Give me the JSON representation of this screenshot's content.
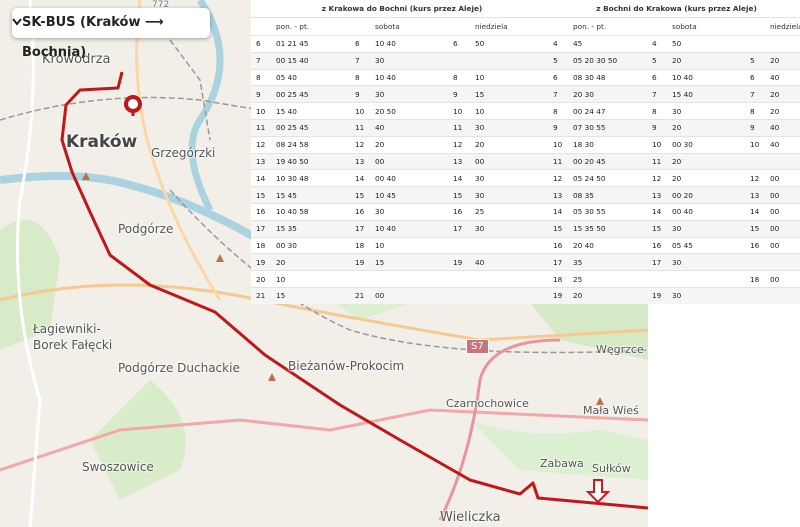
{
  "map": {
    "title": "SK-BUS (Kraków ⟶ Bochnia)",
    "labels": [
      "Krowodrza",
      "Kraków",
      "Grzegórzki",
      "Podgórze",
      "Łagiewniki-",
      "Borek Fałęcki",
      "Podgórze Duchackie",
      "Bieżanów-Prokocim",
      "Czarnochowice",
      "Węgrzce Wiel",
      "Mała Wieś",
      "Swoszowice",
      "Zabawa",
      "Sułków",
      "Wieliczka"
    ],
    "road_labels": [
      "S7",
      "772"
    ]
  },
  "timetable": {
    "directions": [
      "z Krakowa do Bochni (kurs przez Aleje)",
      "z Bochni do Krakowa (kurs przez Aleje)"
    ],
    "columns": [
      "pon. - pt.",
      "sobota",
      "niedziela",
      "pon. - pt.",
      "sobota",
      "niedziela"
    ],
    "rows": [
      [
        "6",
        "01 21 45",
        "6",
        "10 40",
        "6",
        "50",
        "4",
        "45",
        "4",
        "50",
        null,
        null
      ],
      [
        "7",
        "00 15 40",
        "7",
        "30",
        null,
        null,
        "5",
        "05 20 30 50",
        "5",
        "20",
        "5",
        "20"
      ],
      [
        "8",
        "05 40",
        "8",
        "10 40",
        "8",
        "10",
        "6",
        "08 30 48",
        "6",
        "10 40",
        "6",
        "40"
      ],
      [
        "9",
        "00 25 45",
        "9",
        "30",
        "9",
        "15",
        "7",
        "20 30",
        "7",
        "15 40",
        "7",
        "20"
      ],
      [
        "10",
        "15 40",
        "10",
        "20 50",
        "10",
        "10",
        "8",
        "00 24 47",
        "8",
        "30",
        "8",
        "20"
      ],
      [
        "11",
        "00 25 45",
        "11",
        "40",
        "11",
        "30",
        "9",
        "07 30 55",
        "9",
        "20",
        "9",
        "40"
      ],
      [
        "12",
        "08 24 58",
        "12",
        "20",
        "12",
        "20",
        "10",
        "18 30",
        "10",
        "00 30",
        "10",
        "40"
      ],
      [
        "13",
        "19 40 50",
        "13",
        "00",
        "13",
        "00",
        "11",
        "00 20 45",
        "11",
        "20",
        null,
        null
      ],
      [
        "14",
        "10 30 48",
        "14",
        "00 40",
        "14",
        "30",
        "12",
        "05 24 50",
        "12",
        "20",
        "12",
        "00"
      ],
      [
        "15",
        "15 45",
        "15",
        "10 45",
        "15",
        "30",
        "13",
        "08 35",
        "13",
        "00 20",
        "13",
        "00"
      ],
      [
        "16",
        "10 40 58",
        "16",
        "30",
        "16",
        "25",
        "14",
        "05 30 55",
        "14",
        "00 40",
        "14",
        "00"
      ],
      [
        "17",
        "15 35",
        "17",
        "10 40",
        "17",
        "30",
        "15",
        "15 35 50",
        "15",
        "30",
        "15",
        "00"
      ],
      [
        "18",
        "00 30",
        "18",
        "10",
        null,
        null,
        "16",
        "20 40",
        "16",
        "05 45",
        "16",
        "00"
      ],
      [
        "19",
        "20",
        "19",
        "15",
        "19",
        "40",
        "17",
        "35",
        "17",
        "30",
        null,
        null
      ],
      [
        "20",
        "10",
        null,
        null,
        null,
        null,
        "18",
        "25",
        null,
        null,
        "18",
        "00"
      ],
      [
        "21",
        "15",
        "21",
        "00",
        null,
        null,
        "19",
        "20",
        "19",
        "30",
        null,
        null
      ]
    ]
  }
}
